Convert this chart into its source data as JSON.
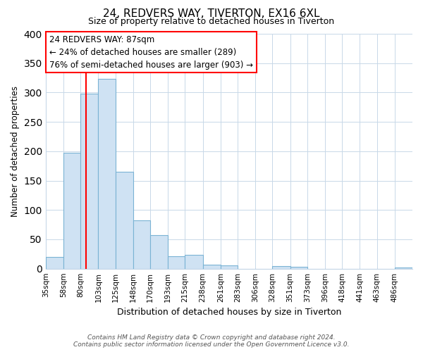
{
  "title": "24, REDVERS WAY, TIVERTON, EX16 6XL",
  "subtitle": "Size of property relative to detached houses in Tiverton",
  "xlabel": "Distribution of detached houses by size in Tiverton",
  "ylabel": "Number of detached properties",
  "bar_labels": [
    "35sqm",
    "58sqm",
    "80sqm",
    "103sqm",
    "125sqm",
    "148sqm",
    "170sqm",
    "193sqm",
    "215sqm",
    "238sqm",
    "261sqm",
    "283sqm",
    "306sqm",
    "328sqm",
    "351sqm",
    "373sqm",
    "396sqm",
    "418sqm",
    "441sqm",
    "463sqm",
    "486sqm"
  ],
  "bar_values": [
    20,
    197,
    298,
    323,
    165,
    82,
    57,
    21,
    23,
    7,
    6,
    0,
    0,
    5,
    3,
    0,
    0,
    0,
    0,
    0,
    2
  ],
  "bar_color": "#cfe2f3",
  "bar_edge_color": "#7ab3d4",
  "property_line_x": 87,
  "ylim": [
    0,
    400
  ],
  "yticks": [
    0,
    50,
    100,
    150,
    200,
    250,
    300,
    350,
    400
  ],
  "annotation_title": "24 REDVERS WAY: 87sqm",
  "annotation_line1": "← 24% of detached houses are smaller (289)",
  "annotation_line2": "76% of semi-detached houses are larger (903) →",
  "footer_line1": "Contains HM Land Registry data © Crown copyright and database right 2024.",
  "footer_line2": "Contains public sector information licensed under the Open Government Licence v3.0.",
  "bin_edges": [
    35,
    58,
    80,
    103,
    125,
    148,
    170,
    193,
    215,
    238,
    261,
    283,
    306,
    328,
    351,
    373,
    396,
    418,
    441,
    463,
    486,
    509
  ]
}
